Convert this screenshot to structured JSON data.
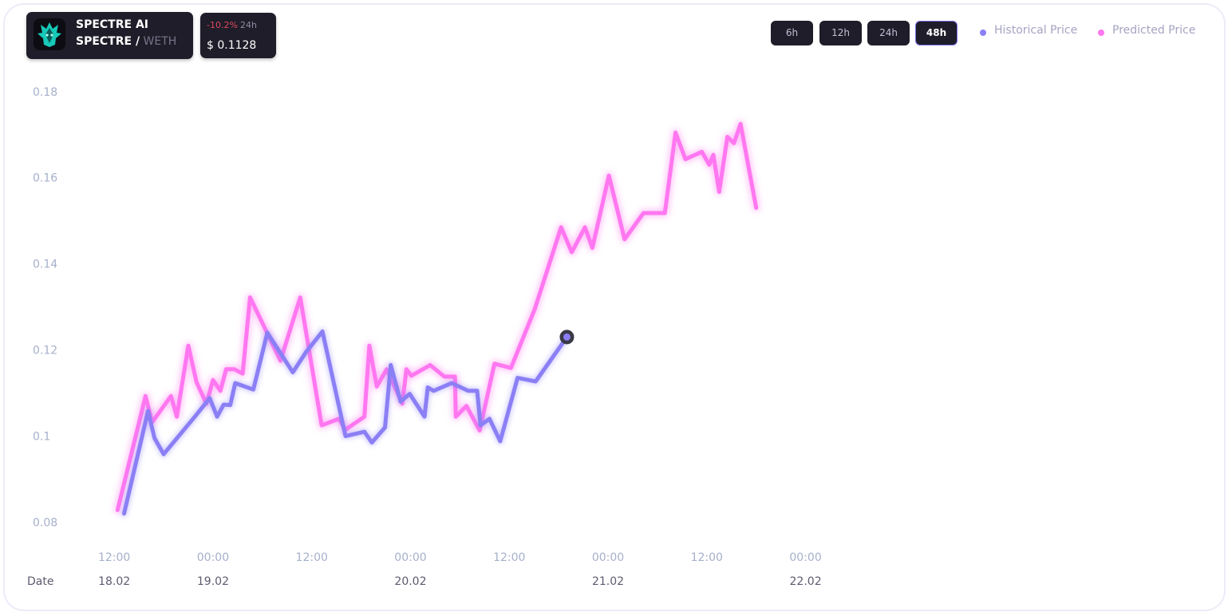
{
  "token": {
    "name": "SPECTRE AI",
    "pair_base": "SPECTRE /",
    "pair_quote": "WETH",
    "logo_icon": "spectre-logo-icon"
  },
  "price": {
    "change": "-10.2%",
    "period": "24h",
    "value": "$ 0.1128"
  },
  "timeframes": {
    "items": [
      "6h",
      "12h",
      "24h",
      "48h"
    ],
    "active": "48h"
  },
  "colors": {
    "historical": "#8b7ff5",
    "predicted": "#ff77f0",
    "change_negative": "#e0485a",
    "card": "#1e1d29"
  },
  "chart_data": {
    "type": "line",
    "xlabel": "Date",
    "x_unit": "hours from 18.02 00:00",
    "xlim": [
      5.1,
      145.1
    ],
    "ylim": [
      0.076,
      0.182
    ],
    "yticks": [
      0.08,
      0.1,
      0.12,
      0.14,
      0.16,
      0.18
    ],
    "ytick_labels": [
      "0.08",
      "0.1",
      "0.12",
      "0.14",
      "0.16",
      "0.18"
    ],
    "time_ticks": [
      {
        "x": 12,
        "label": "12:00"
      },
      {
        "x": 24,
        "label": "00:00"
      },
      {
        "x": 36,
        "label": "12:00"
      },
      {
        "x": 48,
        "label": "00:00"
      },
      {
        "x": 60,
        "label": "12:00"
      },
      {
        "x": 72,
        "label": "00:00"
      },
      {
        "x": 84,
        "label": "12:00"
      },
      {
        "x": 96,
        "label": "00:00"
      }
    ],
    "date_ticks": [
      {
        "x": 12,
        "label": "18.02"
      },
      {
        "x": 24,
        "label": "19.02"
      },
      {
        "x": 48,
        "label": "20.02"
      },
      {
        "x": 72,
        "label": "21.02"
      },
      {
        "x": 96,
        "label": "22.02"
      }
    ],
    "legend": "top-right",
    "grid": false,
    "series": [
      {
        "name": "Historical Price",
        "points": [
          [
            13.2,
            0.082
          ],
          [
            16.1,
            0.1058
          ],
          [
            16.9,
            0.0995
          ],
          [
            18.0,
            0.0958
          ],
          [
            21.8,
            0.1045
          ],
          [
            23.6,
            0.1088
          ],
          [
            24.5,
            0.1045
          ],
          [
            25.3,
            0.1073
          ],
          [
            26.1,
            0.1072
          ],
          [
            26.7,
            0.1123
          ],
          [
            28.9,
            0.1108
          ],
          [
            30.6,
            0.124
          ],
          [
            33.7,
            0.1148
          ],
          [
            35.3,
            0.1195
          ],
          [
            37.3,
            0.1243
          ],
          [
            40.1,
            0.1
          ],
          [
            42.4,
            0.101
          ],
          [
            43.3,
            0.0985
          ],
          [
            44.9,
            0.102
          ],
          [
            45.6,
            0.1165
          ],
          [
            46.8,
            0.108
          ],
          [
            47.9,
            0.1098
          ],
          [
            49.7,
            0.1045
          ],
          [
            50.1,
            0.1113
          ],
          [
            50.8,
            0.1105
          ],
          [
            53.0,
            0.1123
          ],
          [
            55.0,
            0.1105
          ],
          [
            56.1,
            0.1105
          ],
          [
            56.5,
            0.1025
          ],
          [
            57.6,
            0.104
          ],
          [
            58.9,
            0.0988
          ],
          [
            61.0,
            0.1135
          ],
          [
            63.2,
            0.1127
          ],
          [
            67.0,
            0.123
          ]
        ]
      },
      {
        "name": "Predicted Price",
        "points": [
          [
            12.4,
            0.0828
          ],
          [
            15.8,
            0.1093
          ],
          [
            16.6,
            0.1032
          ],
          [
            18.9,
            0.1093
          ],
          [
            19.6,
            0.1045
          ],
          [
            21.0,
            0.121
          ],
          [
            22.0,
            0.1125
          ],
          [
            23.2,
            0.1075
          ],
          [
            24.0,
            0.113
          ],
          [
            24.9,
            0.1105
          ],
          [
            25.6,
            0.1155
          ],
          [
            26.6,
            0.1155
          ],
          [
            27.6,
            0.1145
          ],
          [
            28.5,
            0.1322
          ],
          [
            32.2,
            0.1175
          ],
          [
            34.6,
            0.1322
          ],
          [
            37.2,
            0.1025
          ],
          [
            39.3,
            0.104
          ],
          [
            40.1,
            0.1015
          ],
          [
            42.4,
            0.1045
          ],
          [
            43.0,
            0.121
          ],
          [
            43.9,
            0.1115
          ],
          [
            45.1,
            0.1155
          ],
          [
            47.0,
            0.1075
          ],
          [
            47.5,
            0.1155
          ],
          [
            48.1,
            0.114
          ],
          [
            50.4,
            0.1165
          ],
          [
            52.1,
            0.1138
          ],
          [
            53.4,
            0.1138
          ],
          [
            53.5,
            0.1045
          ],
          [
            54.8,
            0.107
          ],
          [
            56.4,
            0.1013
          ],
          [
            58.2,
            0.1168
          ],
          [
            60.2,
            0.1158
          ],
          [
            63.1,
            0.1295
          ],
          [
            66.3,
            0.1485
          ],
          [
            67.6,
            0.1427
          ],
          [
            69.2,
            0.1485
          ],
          [
            70.1,
            0.1437
          ],
          [
            72.1,
            0.1605
          ],
          [
            74.0,
            0.1457
          ],
          [
            76.3,
            0.1518
          ],
          [
            78.9,
            0.1518
          ],
          [
            80.2,
            0.1705
          ],
          [
            81.4,
            0.1643
          ],
          [
            83.4,
            0.166
          ],
          [
            84.3,
            0.163
          ],
          [
            84.8,
            0.1653
          ],
          [
            85.5,
            0.1567
          ],
          [
            86.5,
            0.1695
          ],
          [
            87.3,
            0.168
          ],
          [
            88.1,
            0.1725
          ],
          [
            90.0,
            0.153
          ]
        ]
      }
    ],
    "marker": {
      "series": "Historical Price",
      "x": 67.0,
      "y": 0.123
    }
  }
}
